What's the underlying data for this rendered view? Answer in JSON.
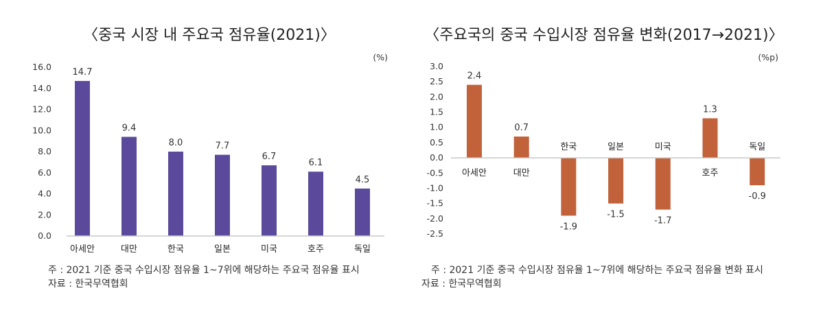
{
  "chart_data": [
    {
      "type": "bar",
      "title": "〈중국 시장 내 주요국 점유율(2021)〉",
      "unit": "(%)",
      "categories": [
        "아세안",
        "대만",
        "한국",
        "일본",
        "미국",
        "호주",
        "독일"
      ],
      "values": [
        14.7,
        9.4,
        8.0,
        7.7,
        6.7,
        6.1,
        4.5
      ],
      "value_labels": [
        "14.7",
        "9.4",
        "8.0",
        "7.7",
        "6.7",
        "6.1",
        "4.5"
      ],
      "ylim": [
        0,
        16
      ],
      "yticks": [
        "0.0",
        "2.0",
        "4.0",
        "6.0",
        "8.0",
        "10.0",
        "12.0",
        "14.0",
        "16.0"
      ],
      "color": "#5b4a9b",
      "grid": false,
      "note": "주 : 2021 기준 중국 수입시장 점유율 1~7위에 해당하는 주요국 점유율 표시",
      "source": "자료 : 한국무역협회"
    },
    {
      "type": "bar",
      "title": "〈주요국의 중국 수입시장 점유율 변화(2017→2021)〉",
      "unit": "(%p)",
      "categories": [
        "아세안",
        "대만",
        "한국",
        "일본",
        "미국",
        "호주",
        "독일"
      ],
      "values": [
        2.4,
        0.7,
        -1.9,
        -1.5,
        -1.7,
        1.3,
        -0.9
      ],
      "value_labels": [
        "2.4",
        "0.7",
        "-1.9",
        "-1.5",
        "-1.7",
        "1.3",
        "-0.9"
      ],
      "ylim": [
        -2.5,
        3.0
      ],
      "yticks": [
        "-2.5",
        "-2.0",
        "-1.5",
        "-1.0",
        "-0.5",
        "0.0",
        "0.5",
        "1.0",
        "1.5",
        "2.0",
        "2.5",
        "3.0"
      ],
      "color": "#c1623b",
      "grid": false,
      "note": "주 : 2021 기준 중국 수입시장 점유율 1~7위에 해당하는 주요국 점유율 변화 표시",
      "source": "자료 : 한국무역협회"
    }
  ]
}
